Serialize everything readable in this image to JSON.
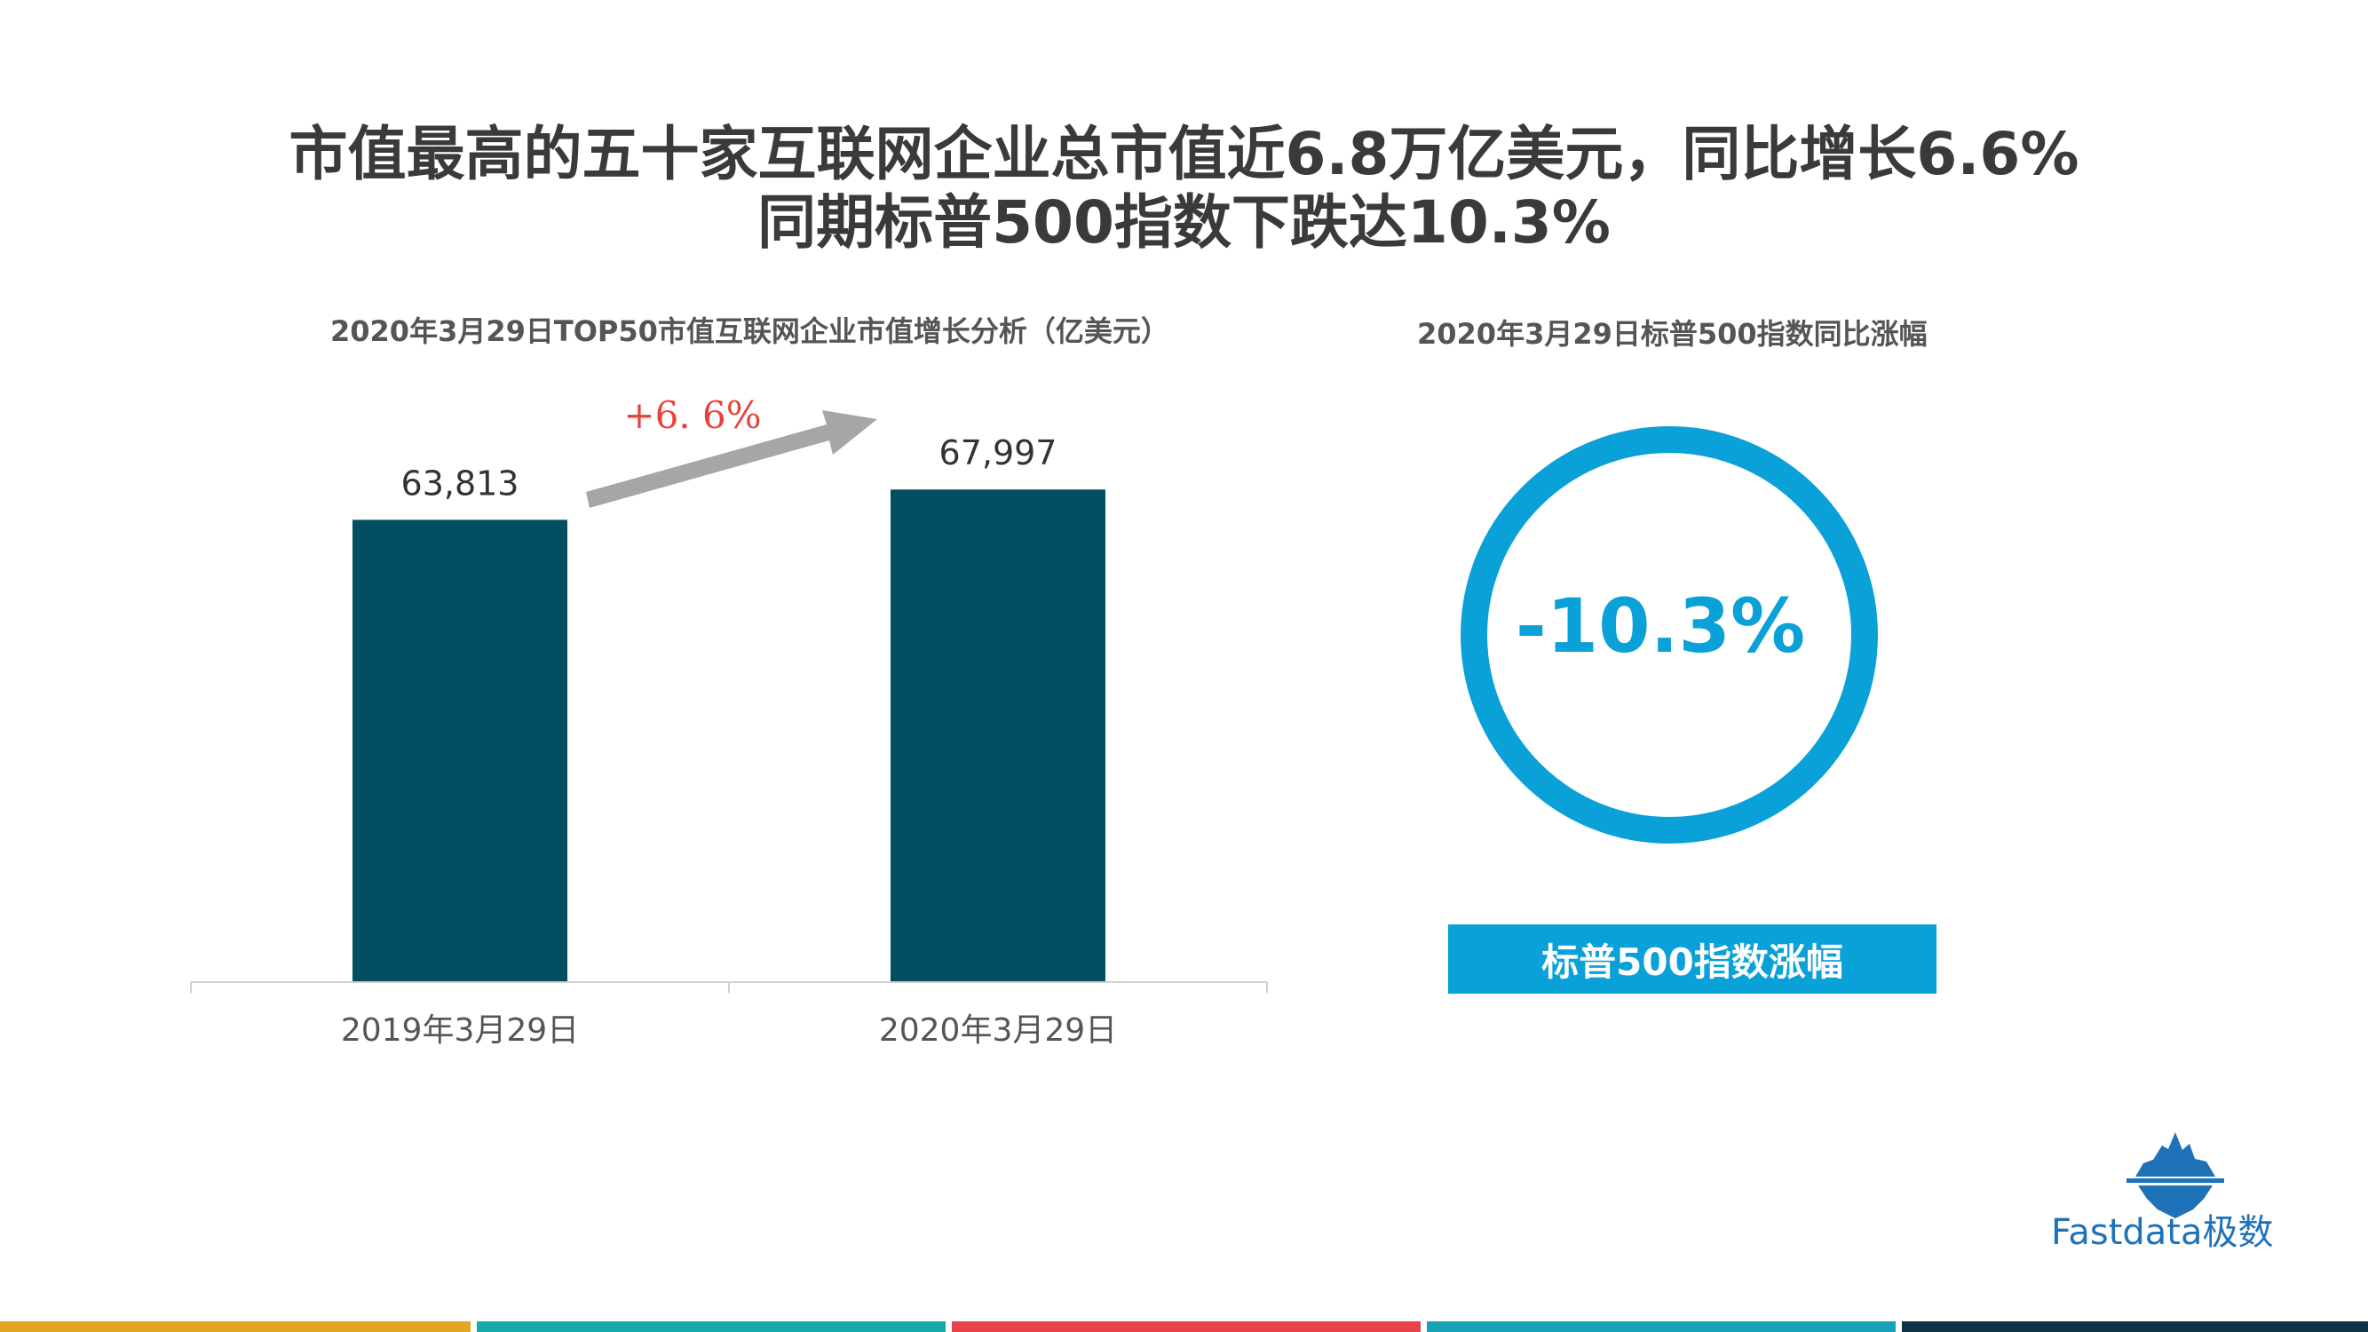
{
  "page": {
    "title_line1": "市值最高的五十家互联网企业总市值近6.8万亿美元，同比增长6.6%",
    "title_line2": "同期标普500指数下跌达10.3%"
  },
  "chart_data": [
    {
      "type": "bar",
      "title": "2020年3月29日TOP50市值互联网企业市值增长分析（亿美元）",
      "categories": [
        "2019年3月29日",
        "2020年3月29日"
      ],
      "values": [
        63813,
        67997
      ],
      "value_labels": [
        "63,813",
        "67,997"
      ],
      "ylim": [
        0,
        70000
      ],
      "bar_color": "#044e62",
      "annotation": {
        "text": "+6. 6%",
        "color": "#e8433b"
      }
    },
    {
      "type": "pie",
      "title": "2020年3月29日标普500指数同比涨幅",
      "value": -10.3,
      "value_label": "-10.3%",
      "label": "标普500指数涨幅",
      "color": "#0aa0d8"
    }
  ],
  "brand": {
    "name": "Fastdata极数",
    "icon": "iceberg-logo-icon",
    "color": "#1e72b8"
  },
  "footer_colors": [
    "#e3a623",
    "#15aaa8",
    "#e8434a",
    "#16a3b8",
    "#0c3446"
  ]
}
